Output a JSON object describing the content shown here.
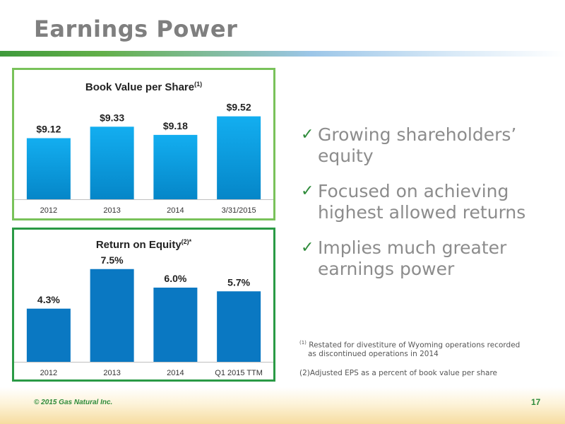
{
  "slide": {
    "title": "Earnings Power",
    "page_number": "17",
    "copyright": "© 2015 Gas Natural Inc."
  },
  "bullets": [
    "Growing shareholders’ equity",
    "Focused on achieving highest allowed returns",
    "Implies much greater earnings power"
  ],
  "footnotes": {
    "fn1_marker": "(1)",
    "fn1_line1": "Restated for divestiture of Wyoming operations recorded",
    "fn1_line2": "as discontinued operations in 2014",
    "fn2": "(2)Adjusted EPS as a percent of book value per share"
  },
  "colors": {
    "bv_bar_top": "#13aef0",
    "bv_bar_bottom": "#0586c8",
    "roe_bar": "#0a78c2",
    "accent_green": "#2e8b3a"
  },
  "chart_data": [
    {
      "type": "bar",
      "title": "Book Value per Share",
      "title_sup": "(1)",
      "categories": [
        "2012",
        "2013",
        "2014",
        "3/31/2015"
      ],
      "values": [
        9.12,
        9.33,
        9.18,
        9.52
      ],
      "labels": [
        "$9.12",
        "$9.33",
        "$9.18",
        "$9.52"
      ],
      "ylim": [
        8.0,
        9.8
      ],
      "grid": false,
      "legend": "none"
    },
    {
      "type": "bar",
      "title": "Return on Equity",
      "title_sup": "(2)*",
      "categories": [
        "2012",
        "2013",
        "2014",
        "Q1 2015 TTM"
      ],
      "values": [
        4.3,
        7.5,
        6.0,
        5.7
      ],
      "labels": [
        "4.3%",
        "7.5%",
        "6.0%",
        "5.7%"
      ],
      "ylim": [
        0,
        8.8
      ],
      "grid": false,
      "legend": "none"
    }
  ]
}
